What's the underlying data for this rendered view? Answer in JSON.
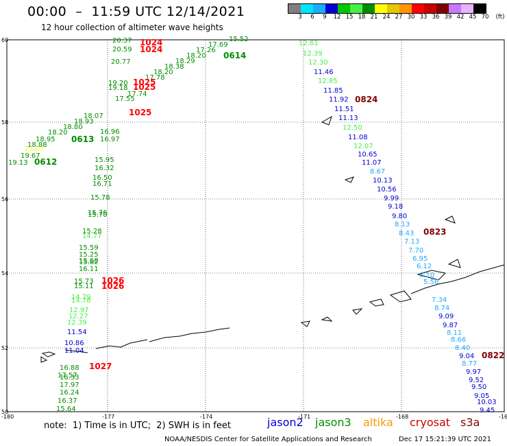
{
  "header": {
    "title": "00:00  –  11:59 UTC 12/14/2021",
    "subtitle": "12 hour collection of altimeter wave heights"
  },
  "color_scale": {
    "labels": [
      "3",
      "6",
      "9",
      "12",
      "15",
      "18",
      "21",
      "24",
      "27",
      "30",
      "33",
      "36",
      "39",
      "42",
      "45",
      "70"
    ],
    "unit_label": "(ft)",
    "colors": [
      "#7f7f7f",
      "#00e5ff",
      "#1eaaff",
      "#0000d0",
      "#00c800",
      "#46f046",
      "#008c00",
      "#ffff00",
      "#e6c800",
      "#ff9600",
      "#ff0000",
      "#c80000",
      "#800000",
      "#c878ff",
      "#e6b4ff",
      "#000000"
    ]
  },
  "map": {
    "lat_labels": [
      "60",
      "58",
      "56",
      "54",
      "52",
      "50"
    ],
    "lon_labels": [
      "-180",
      "-177",
      "-174",
      "-171",
      "-168",
      "-16"
    ]
  },
  "legend": [
    {
      "name": "jason2",
      "color": "#0000d0"
    },
    {
      "name": "jason3",
      "color": "#008c00"
    },
    {
      "name": "altika",
      "color": "#ff9600"
    },
    {
      "name": "cryosat",
      "color": "#c80000"
    },
    {
      "name": "s3a",
      "color": "#800000"
    }
  ],
  "footer": {
    "note": "note:  1) Time is in UTC;  2) SWH is in feet",
    "credit": "NOAA/NESDIS Center for Satellite Applications and Research",
    "timestamp": "Dec 17 15:21:39 UTC 2021"
  },
  "tracks": [
    {
      "name": "west-track",
      "times": [
        {
          "text": "0612",
          "color": "#008c00"
        },
        {
          "text": "0613",
          "color": "#008c00"
        },
        {
          "text": "0614",
          "color": "#008c00"
        }
      ],
      "heights": [
        {
          "text": "19.13",
          "color": "#008c00"
        },
        {
          "text": "19.67",
          "color": "#008c00"
        },
        {
          "text": "21.07",
          "color": "#ffff00"
        },
        {
          "text": "18.88",
          "color": "#008c00"
        },
        {
          "text": "18.95",
          "color": "#008c00"
        },
        {
          "text": "18.20",
          "color": "#008c00"
        },
        {
          "text": "18.80",
          "color": "#008c00"
        },
        {
          "text": "18.93",
          "color": "#008c00"
        },
        {
          "text": "18.07",
          "color": "#008c00"
        },
        {
          "text": "19.20",
          "color": "#008c00"
        },
        {
          "text": "19.18",
          "color": "#008c00"
        },
        {
          "text": "17.55",
          "color": "#008c00"
        },
        {
          "text": "17.74",
          "color": "#008c00"
        },
        {
          "text": "17.78",
          "color": "#008c00"
        },
        {
          "text": "18.20",
          "color": "#008c00"
        },
        {
          "text": "18.38",
          "color": "#008c00"
        },
        {
          "text": "18.29",
          "color": "#008c00"
        },
        {
          "text": "18.20",
          "color": "#008c00"
        },
        {
          "text": "17.26",
          "color": "#008c00"
        },
        {
          "text": "17.69",
          "color": "#008c00"
        },
        {
          "text": "15.52",
          "color": "#008c00"
        },
        {
          "text": "20.37",
          "color": "#008c00"
        },
        {
          "text": "20.59",
          "color": "#008c00"
        },
        {
          "text": "20.77",
          "color": "#008c00"
        }
      ]
    },
    {
      "name": "central-track",
      "times": [
        {
          "text": "1024",
          "color": "#ff0000"
        },
        {
          "text": "1024",
          "color": "#ff0000"
        },
        {
          "text": "1025",
          "color": "#ff0000"
        },
        {
          "text": "1025",
          "color": "#ff0000"
        },
        {
          "text": "1025",
          "color": "#ff0000"
        },
        {
          "text": "1026",
          "color": "#ff0000"
        },
        {
          "text": "1026",
          "color": "#ff0000"
        },
        {
          "text": "1027",
          "color": "#ff0000"
        }
      ],
      "heights": [
        {
          "text": "16.96",
          "color": "#008c00"
        },
        {
          "text": "16.97",
          "color": "#008c00"
        },
        {
          "text": "15.95",
          "color": "#008c00"
        },
        {
          "text": "16.32",
          "color": "#008c00"
        },
        {
          "text": "16.50",
          "color": "#008c00"
        },
        {
          "text": "16.71",
          "color": "#008c00"
        },
        {
          "text": "15.78",
          "color": "#008c00"
        },
        {
          "text": "15.76",
          "color": "#008c00"
        },
        {
          "text": "15.70",
          "color": "#008c00"
        },
        {
          "text": "15.28",
          "color": "#008c00"
        },
        {
          "text": "14.77",
          "color": "#46f046"
        },
        {
          "text": "15.59",
          "color": "#008c00"
        },
        {
          "text": "15.25",
          "color": "#008c00"
        },
        {
          "text": "15.68",
          "color": "#008c00"
        },
        {
          "text": "15.82",
          "color": "#008c00"
        },
        {
          "text": "16.11",
          "color": "#008c00"
        },
        {
          "text": "15.73",
          "color": "#008c00"
        },
        {
          "text": "15.11",
          "color": "#008c00"
        },
        {
          "text": "14.79",
          "color": "#46f046"
        },
        {
          "text": "14.78",
          "color": "#46f046"
        },
        {
          "text": "12.97",
          "color": "#46f046"
        },
        {
          "text": "12.27",
          "color": "#46f046"
        },
        {
          "text": "12.39",
          "color": "#46f046"
        },
        {
          "text": "11.54",
          "color": "#0000d0"
        },
        {
          "text": "10.86",
          "color": "#0000d0"
        },
        {
          "text": "11.04",
          "color": "#0000d0"
        },
        {
          "text": "16.88",
          "color": "#008c00"
        },
        {
          "text": "17.57",
          "color": "#008c00"
        },
        {
          "text": "16.33",
          "color": "#008c00"
        },
        {
          "text": "17.97",
          "color": "#008c00"
        },
        {
          "text": "16.24",
          "color": "#008c00"
        },
        {
          "text": "16.37",
          "color": "#008c00"
        },
        {
          "text": "15.64",
          "color": "#008c00"
        }
      ]
    },
    {
      "name": "east-track",
      "times": [
        {
          "text": "0824",
          "color": "#800000"
        },
        {
          "text": "0823",
          "color": "#800000"
        },
        {
          "text": "0822",
          "color": "#800000"
        }
      ],
      "heights": [
        {
          "text": "12.61",
          "color": "#46f046"
        },
        {
          "text": "12.39",
          "color": "#46f046"
        },
        {
          "text": "12.30",
          "color": "#46f046"
        },
        {
          "text": "11.46",
          "color": "#0000d0"
        },
        {
          "text": "12.85",
          "color": "#46f046"
        },
        {
          "text": "11.85",
          "color": "#0000d0"
        },
        {
          "text": "11.92",
          "color": "#0000d0"
        },
        {
          "text": "11.51",
          "color": "#0000d0"
        },
        {
          "text": "11.13",
          "color": "#0000d0"
        },
        {
          "text": "12.50",
          "color": "#46f046"
        },
        {
          "text": "11.08",
          "color": "#0000d0"
        },
        {
          "text": "12.07",
          "color": "#46f046"
        },
        {
          "text": "10.65",
          "color": "#0000d0"
        },
        {
          "text": "11.07",
          "color": "#0000d0"
        },
        {
          "text": "8.67",
          "color": "#1eaaff"
        },
        {
          "text": "10.13",
          "color": "#0000d0"
        },
        {
          "text": "10.56",
          "color": "#0000d0"
        },
        {
          "text": "9.99",
          "color": "#0000d0"
        },
        {
          "text": "9.18",
          "color": "#0000d0"
        },
        {
          "text": "9.80",
          "color": "#0000d0"
        },
        {
          "text": "8.13",
          "color": "#1eaaff"
        },
        {
          "text": "8.43",
          "color": "#1eaaff"
        },
        {
          "text": "7.13",
          "color": "#1eaaff"
        },
        {
          "text": "7.70",
          "color": "#1eaaff"
        },
        {
          "text": "6.95",
          "color": "#1eaaff"
        },
        {
          "text": "6.12",
          "color": "#1eaaff"
        },
        {
          "text": "6.10",
          "color": "#1eaaff"
        },
        {
          "text": "5.56",
          "color": "#1eaaff"
        },
        {
          "text": "7.34",
          "color": "#1eaaff"
        },
        {
          "text": "8.74",
          "color": "#1eaaff"
        },
        {
          "text": "9.09",
          "color": "#0000d0"
        },
        {
          "text": "9.87",
          "color": "#0000d0"
        },
        {
          "text": "8.11",
          "color": "#1eaaff"
        },
        {
          "text": "8.66",
          "color": "#1eaaff"
        },
        {
          "text": "8.40",
          "color": "#1eaaff"
        },
        {
          "text": "9.04",
          "color": "#0000d0"
        },
        {
          "text": "8.77",
          "color": "#1eaaff"
        },
        {
          "text": "9.97",
          "color": "#0000d0"
        },
        {
          "text": "9.52",
          "color": "#0000d0"
        },
        {
          "text": "9.50",
          "color": "#0000d0"
        },
        {
          "text": "9.05",
          "color": "#0000d0"
        },
        {
          "text": "10.03",
          "color": "#0000d0"
        },
        {
          "text": "9.45",
          "color": "#0000d0"
        }
      ]
    }
  ]
}
